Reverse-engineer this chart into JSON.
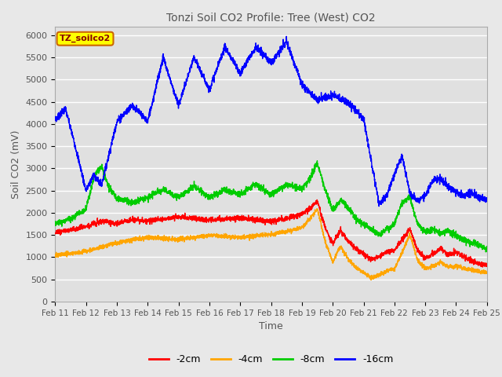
{
  "title": "Tonzi Soil CO2 Profile: Tree (West) CO2",
  "ylabel": "Soil CO2 (mV)",
  "xlabel": "Time",
  "legend_label": "TZ_soilco2",
  "series_labels": [
    "-2cm",
    "-4cm",
    "-8cm",
    "-16cm"
  ],
  "series_colors": [
    "#ff0000",
    "#ffa500",
    "#00cc00",
    "#0000ff"
  ],
  "ylim": [
    0,
    6200
  ],
  "xlim": [
    0,
    336
  ],
  "tick_hours": [
    0,
    24,
    48,
    72,
    96,
    120,
    144,
    168,
    192,
    216,
    240,
    264,
    288,
    312,
    336
  ],
  "tick_labels": [
    "Feb 11",
    "Feb 12",
    "Feb 13",
    "Feb 14",
    "Feb 15",
    "Feb 16",
    "Feb 17",
    "Feb 18",
    "Feb 19",
    "Feb 20",
    "Feb 21",
    "Feb 22",
    "Feb 23",
    "Feb 24",
    "Feb 25"
  ],
  "yticks": [
    0,
    500,
    1000,
    1500,
    2000,
    2500,
    3000,
    3500,
    4000,
    4500,
    5000,
    5500,
    6000
  ],
  "background_color": "#e8e8e8",
  "plot_bg_color": "#e0e0e0",
  "grid_color": "#ffffff",
  "title_color": "#555555",
  "label_color": "#555555",
  "legend_box_color": "#ffff00",
  "legend_box_border": "#cc6600",
  "legend_text_color": "#880000"
}
